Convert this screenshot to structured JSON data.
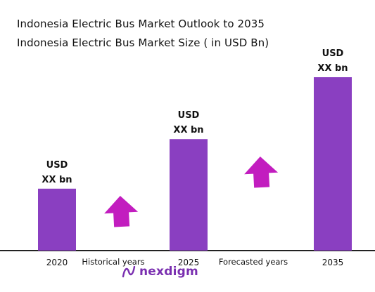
{
  "chart_data": {
    "type": "bar",
    "title": "Indonesia Electric Bus Market Outlook to 2035",
    "subtitle": "Indonesia Electric Bus Market Size ( in USD Bn)",
    "categories": [
      "2020",
      "2025",
      "2035"
    ],
    "values": [
      1.0,
      1.8,
      2.8
    ],
    "data_labels": [
      {
        "line1": "USD",
        "line2": "XX bn"
      },
      {
        "line1": "USD",
        "line2": "XX bn"
      },
      {
        "line1": "USD",
        "line2": "XX bn"
      }
    ],
    "period_labels": [
      "Historical years",
      "Forecasted years"
    ],
    "ylim": [
      0,
      2.8
    ],
    "grid": false,
    "bar_color": "#8a3fc1",
    "arrow_color": "#c21dbf",
    "axis_color": "#222222"
  },
  "brand": {
    "name": "nexdigm",
    "color": "#7a2fb0",
    "icon": "nexdigm-logo-icon"
  }
}
